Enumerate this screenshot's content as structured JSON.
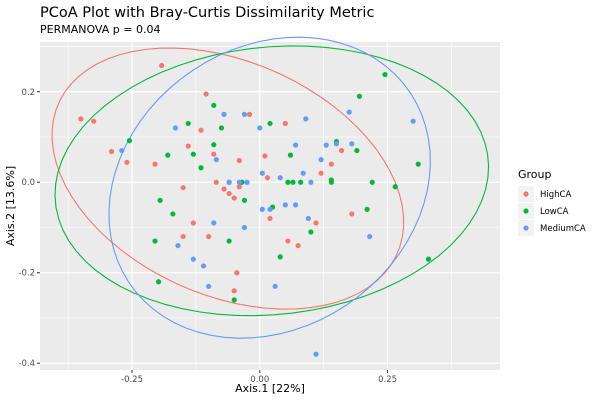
{
  "chart_data": {
    "type": "scatter",
    "title": "PCoA Plot with Bray-Curtis Dissimilarity Metric",
    "subtitle": "PERMANOVA p = 0.04",
    "xlabel": "Axis.1   [22%]",
    "ylabel": "Axis.2   [13.6%]",
    "xlim": [
      -0.43,
      0.47
    ],
    "ylim": [
      -0.415,
      0.31
    ],
    "x_ticks": [
      -0.25,
      0.0,
      0.25
    ],
    "x_tick_labels": [
      "-0.25",
      "0.00",
      "0.25"
    ],
    "y_ticks": [
      0.2,
      0.0,
      -0.2,
      -0.4
    ],
    "y_tick_labels": [
      "0.2",
      "0.0",
      "-0.2",
      "-0.4"
    ],
    "grid": true,
    "legend": {
      "title": "Group",
      "placement": "right"
    },
    "ellipses": true,
    "series": [
      {
        "name": "HighCA",
        "color": "#F8766D",
        "points": [
          [
            -0.35,
            0.14
          ],
          [
            -0.325,
            0.135
          ],
          [
            -0.29,
            0.068
          ],
          [
            -0.26,
            0.044
          ],
          [
            -0.205,
            0.04
          ],
          [
            -0.192,
            0.258
          ],
          [
            -0.15,
            -0.012
          ],
          [
            -0.14,
            0.08
          ],
          [
            -0.13,
            -0.09
          ],
          [
            -0.115,
            0.115
          ],
          [
            -0.105,
            0.195
          ],
          [
            -0.09,
            0.062
          ],
          [
            -0.085,
            0.0
          ],
          [
            -0.07,
            -0.015
          ],
          [
            -0.06,
            -0.025
          ],
          [
            -0.05,
            -0.035
          ],
          [
            -0.045,
            -0.2
          ],
          [
            -0.04,
            0.048
          ],
          [
            -0.02,
            0.15
          ],
          [
            -0.05,
            -0.24
          ],
          [
            -0.1,
            -0.12
          ],
          [
            -0.15,
            -0.12
          ],
          [
            0.01,
            0.058
          ],
          [
            0.015,
            0.01
          ],
          [
            0.02,
            -0.08
          ],
          [
            0.05,
            0.13
          ],
          [
            0.055,
            -0.13
          ],
          [
            0.075,
            -0.14
          ],
          [
            0.11,
            -0.09
          ],
          [
            0.12,
            0.02
          ],
          [
            0.14,
            0.04
          ],
          [
            0.16,
            0.07
          ],
          [
            0.18,
            -0.07
          ],
          [
            -0.04,
            -0.01
          ],
          [
            -0.06,
            0.0
          ]
        ]
      },
      {
        "name": "LowCA",
        "color": "#00BA38",
        "points": [
          [
            -0.255,
            0.092
          ],
          [
            -0.205,
            -0.13
          ],
          [
            -0.198,
            -0.22
          ],
          [
            -0.195,
            -0.04
          ],
          [
            -0.18,
            0.06
          ],
          [
            -0.17,
            -0.07
          ],
          [
            -0.14,
            0.13
          ],
          [
            -0.13,
            0.062
          ],
          [
            -0.115,
            0.032
          ],
          [
            -0.09,
            0.17
          ],
          [
            -0.09,
            0.083
          ],
          [
            -0.075,
            0.12
          ],
          [
            -0.06,
            -0.13
          ],
          [
            -0.05,
            -0.26
          ],
          [
            -0.035,
            0.0
          ],
          [
            0.02,
            0.13
          ],
          [
            0.025,
            -0.055
          ],
          [
            0.04,
            -0.165
          ],
          [
            0.055,
            0.0
          ],
          [
            0.065,
            0.0
          ],
          [
            0.08,
            0.0
          ],
          [
            0.1,
            -0.11
          ],
          [
            0.14,
            0.0
          ],
          [
            0.14,
            0.005
          ],
          [
            0.19,
            0.07
          ],
          [
            0.195,
            0.19
          ],
          [
            0.21,
            -0.06
          ],
          [
            0.22,
            0.0
          ],
          [
            0.245,
            0.238
          ],
          [
            0.265,
            -0.01
          ],
          [
            0.31,
            0.04
          ],
          [
            0.33,
            -0.17
          ],
          [
            0.15,
            0.09
          ],
          [
            -0.03,
            -0.04
          ],
          [
            0.06,
            0.06
          ]
        ]
      },
      {
        "name": "MediumCA",
        "color": "#619CFF",
        "points": [
          [
            -0.27,
            0.07
          ],
          [
            -0.165,
            0.12
          ],
          [
            -0.13,
            -0.17
          ],
          [
            -0.11,
            -0.185
          ],
          [
            -0.1,
            -0.23
          ],
          [
            -0.085,
            0.05
          ],
          [
            -0.07,
            0.15
          ],
          [
            -0.06,
            0.0
          ],
          [
            -0.04,
            0.0
          ],
          [
            -0.03,
            0.15
          ],
          [
            -0.025,
            0.0
          ],
          [
            0.0,
            0.12
          ],
          [
            0.005,
            -0.06
          ],
          [
            0.02,
            -0.06
          ],
          [
            0.03,
            -0.23
          ],
          [
            0.05,
            -0.05
          ],
          [
            0.07,
            0.082
          ],
          [
            0.09,
            0.14
          ],
          [
            0.095,
            -0.08
          ],
          [
            0.1,
            0.0
          ],
          [
            0.11,
            -0.38
          ],
          [
            0.13,
            0.082
          ],
          [
            0.15,
            0.085
          ],
          [
            0.175,
            0.155
          ],
          [
            0.18,
            0.085
          ],
          [
            0.215,
            -0.12
          ],
          [
            0.3,
            0.135
          ],
          [
            -0.16,
            -0.14
          ],
          [
            -0.09,
            -0.09
          ],
          [
            0.07,
            -0.05
          ],
          [
            0.085,
            0.02
          ],
          [
            0.12,
            0.05
          ],
          [
            0.04,
            0.01
          ],
          [
            -0.03,
            -0.1
          ],
          [
            0.005,
            0.02
          ]
        ]
      }
    ]
  }
}
